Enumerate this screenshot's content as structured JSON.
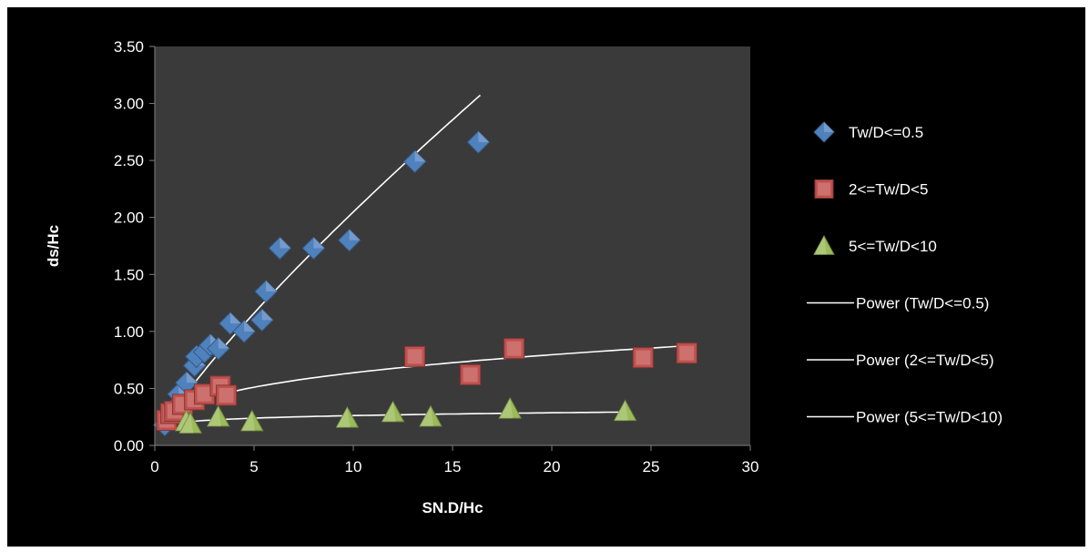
{
  "chart_data": {
    "type": "scatter",
    "title": "",
    "xlabel": "SN.D/Hc",
    "ylabel": "ds/Hc",
    "xlim": [
      0,
      30
    ],
    "ylim": [
      0,
      3.5
    ],
    "x_ticks": [
      "0",
      "5",
      "10",
      "15",
      "20",
      "25",
      "30"
    ],
    "y_ticks": [
      "0.00",
      "0.50",
      "1.00",
      "1.50",
      "2.00",
      "2.50",
      "3.00",
      "3.50"
    ],
    "grid": false,
    "legend_position": "right",
    "background": "#3a3a3a",
    "series": [
      {
        "name": "Tw/D<=0.5",
        "marker": "diamond",
        "color": "#4f81bd",
        "points": [
          [
            0.5,
            0.18
          ],
          [
            0.7,
            0.25
          ],
          [
            1.0,
            0.33
          ],
          [
            1.2,
            0.45
          ],
          [
            1.6,
            0.55
          ],
          [
            2.0,
            0.7
          ],
          [
            2.1,
            0.78
          ],
          [
            2.5,
            0.82
          ],
          [
            2.8,
            0.88
          ],
          [
            3.2,
            0.85
          ],
          [
            3.8,
            1.07
          ],
          [
            4.5,
            1.0
          ],
          [
            5.4,
            1.1
          ],
          [
            5.6,
            1.35
          ],
          [
            6.3,
            1.73
          ],
          [
            8.0,
            1.73
          ],
          [
            9.8,
            1.8
          ],
          [
            13.1,
            2.49
          ],
          [
            16.3,
            2.66
          ]
        ]
      },
      {
        "name": "2<=Tw/D<5",
        "marker": "square",
        "color": "#c0504d",
        "points": [
          [
            0.6,
            0.22
          ],
          [
            0.8,
            0.28
          ],
          [
            1.0,
            0.3
          ],
          [
            1.4,
            0.36
          ],
          [
            2.0,
            0.4
          ],
          [
            2.5,
            0.45
          ],
          [
            3.3,
            0.52
          ],
          [
            3.6,
            0.44
          ],
          [
            13.1,
            0.78
          ],
          [
            15.9,
            0.62
          ],
          [
            18.1,
            0.85
          ],
          [
            24.6,
            0.77
          ],
          [
            26.8,
            0.81
          ]
        ]
      },
      {
        "name": "5<=Tw/D<10",
        "marker": "triangle",
        "color": "#9bbb59",
        "points": [
          [
            1.6,
            0.21
          ],
          [
            1.8,
            0.19
          ],
          [
            3.2,
            0.25
          ],
          [
            4.9,
            0.21
          ],
          [
            9.7,
            0.24
          ],
          [
            12.0,
            0.29
          ],
          [
            13.9,
            0.25
          ],
          [
            17.9,
            0.32
          ],
          [
            23.7,
            0.3
          ]
        ]
      }
    ],
    "trendlines": [
      {
        "name": "Power (Tw/D<=0.5)",
        "color": "#ffffff",
        "a": 0.31,
        "b": 0.82,
        "x_range": [
          0.7,
          16.4
        ]
      },
      {
        "name": "Power (2<=Tw/D<5)",
        "color": "#ffffff",
        "a": 0.305,
        "b": 0.32,
        "x_range": [
          0.7,
          26.8
        ]
      },
      {
        "name": "Power (5<=Tw/D<10)",
        "color": "#ffffff",
        "a": 0.194,
        "b": 0.13,
        "x_range": [
          1.4,
          23.7
        ]
      }
    ]
  }
}
